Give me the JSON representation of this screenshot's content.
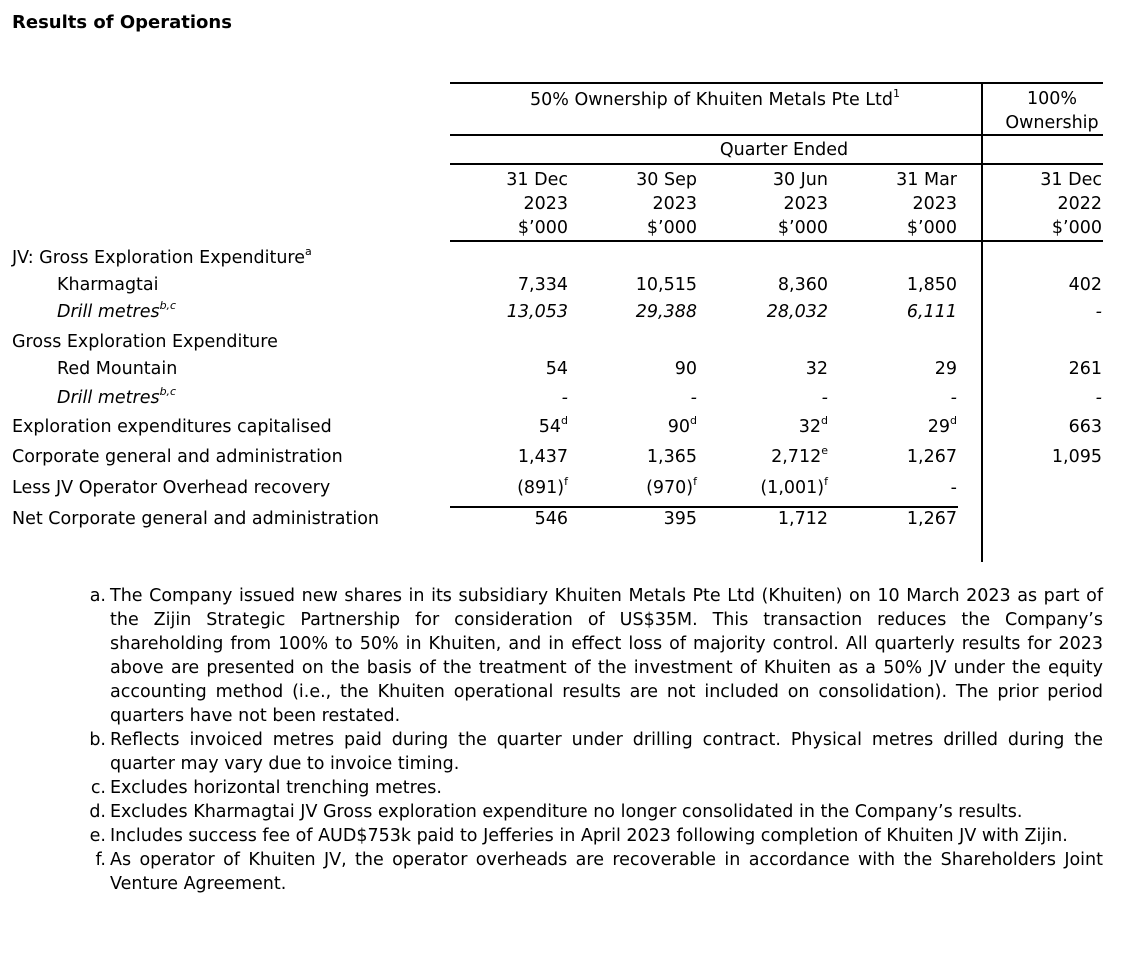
{
  "title": "Results of Operations",
  "header": {
    "group1": "50% Ownership of Khuiten Metals Pte Ltd",
    "group1_sup": "1",
    "group2_line1": "100%",
    "group2_line2": "Ownership",
    "quarter_ended": "Quarter Ended",
    "columns": [
      {
        "d": "31 Dec",
        "y": "2023",
        "u": "$’000"
      },
      {
        "d": "30 Sep",
        "y": "2023",
        "u": "$’000"
      },
      {
        "d": "30 Jun",
        "y": "2023",
        "u": "$’000"
      },
      {
        "d": "31 Mar",
        "y": "2023",
        "u": "$’000"
      },
      {
        "d": "31 Dec",
        "y": "2022",
        "u": "$’000"
      }
    ]
  },
  "rows": [
    {
      "label": "JV: Gross Exploration Expenditure",
      "sup": "a",
      "values": [
        "",
        "",
        "",
        "",
        ""
      ],
      "sups": [
        "",
        "",
        "",
        "",
        ""
      ]
    },
    {
      "label": "Kharmagtai",
      "values": [
        "7,334",
        "10,515",
        "8,360",
        "1,850",
        "402"
      ],
      "sups": [
        "",
        "",
        "",
        "",
        ""
      ]
    },
    {
      "label": "Drill metres",
      "sup": "b,c",
      "values": [
        "13,053",
        "29,388",
        "28,032",
        "6,111",
        "-"
      ],
      "sups": [
        "",
        "",
        "",
        "",
        ""
      ]
    },
    {
      "label": "Gross Exploration Expenditure",
      "values": [
        "",
        "",
        "",
        "",
        ""
      ],
      "sups": [
        "",
        "",
        "",
        "",
        ""
      ]
    },
    {
      "label": "Red Mountain",
      "values": [
        "54",
        "90",
        "32",
        "29",
        "261"
      ],
      "sups": [
        "",
        "",
        "",
        "",
        ""
      ]
    },
    {
      "label": "Drill metres",
      "sup": "b,c",
      "values": [
        "-",
        "-",
        "-",
        "-",
        "-"
      ],
      "sups": [
        "",
        "",
        "",
        "",
        ""
      ]
    },
    {
      "label": "Exploration expenditures capitalised",
      "values": [
        "54",
        "90",
        "32",
        "29",
        "663"
      ],
      "sups": [
        "d",
        "d",
        "d",
        "d",
        ""
      ]
    },
    {
      "label": "Corporate general and administration",
      "values": [
        "1,437",
        "1,365",
        "2,712",
        "1,267",
        "1,095"
      ],
      "sups": [
        "",
        "",
        "e",
        "",
        ""
      ]
    },
    {
      "label": "Less JV Operator Overhead recovery",
      "values": [
        "(891)",
        "(970)",
        "(1,001)",
        "-",
        ""
      ],
      "sups": [
        "f",
        "f",
        "f",
        "",
        ""
      ]
    },
    {
      "label": "Net Corporate general and administration",
      "values": [
        "546",
        "395",
        "1,712",
        "1,267",
        ""
      ],
      "sups": [
        "",
        "",
        "",
        "",
        ""
      ]
    }
  ],
  "notes": [
    {
      "key": "a.",
      "text": "The Company issued new shares in its subsidiary Khuiten Metals Pte Ltd (Khuiten) on 10 March 2023 as part of the Zijin Strategic Partnership for consideration of US$35M.   This transaction reduces the Company’s shareholding from 100% to 50% in Khuiten, and in effect loss of majority control. All quarterly results for 2023 above are presented on the basis of the treatment of the investment of Khuiten as a 50% JV under the equity accounting method (i.e., the Khuiten operational results are not included on consolidation). The prior period quarters have not been restated."
    },
    {
      "key": "b.",
      "text": "Reflects invoiced metres paid during the quarter under drilling contract. Physical metres drilled during the quarter may vary due to invoice timing."
    },
    {
      "key": "c.",
      "text": "Excludes horizontal trenching metres."
    },
    {
      "key": "d.",
      "text": "Excludes Kharmagtai JV Gross exploration expenditure no longer consolidated in the Company’s results."
    },
    {
      "key": "e.",
      "text": "Includes success fee of AUD$753k paid to Jefferies in April 2023 following completion of Khuiten JV with Zijin."
    },
    {
      "key": "f.",
      "text": "As operator of Khuiten JV, the operator overheads are recoverable in accordance with the Shareholders Joint Venture Agreement."
    }
  ]
}
